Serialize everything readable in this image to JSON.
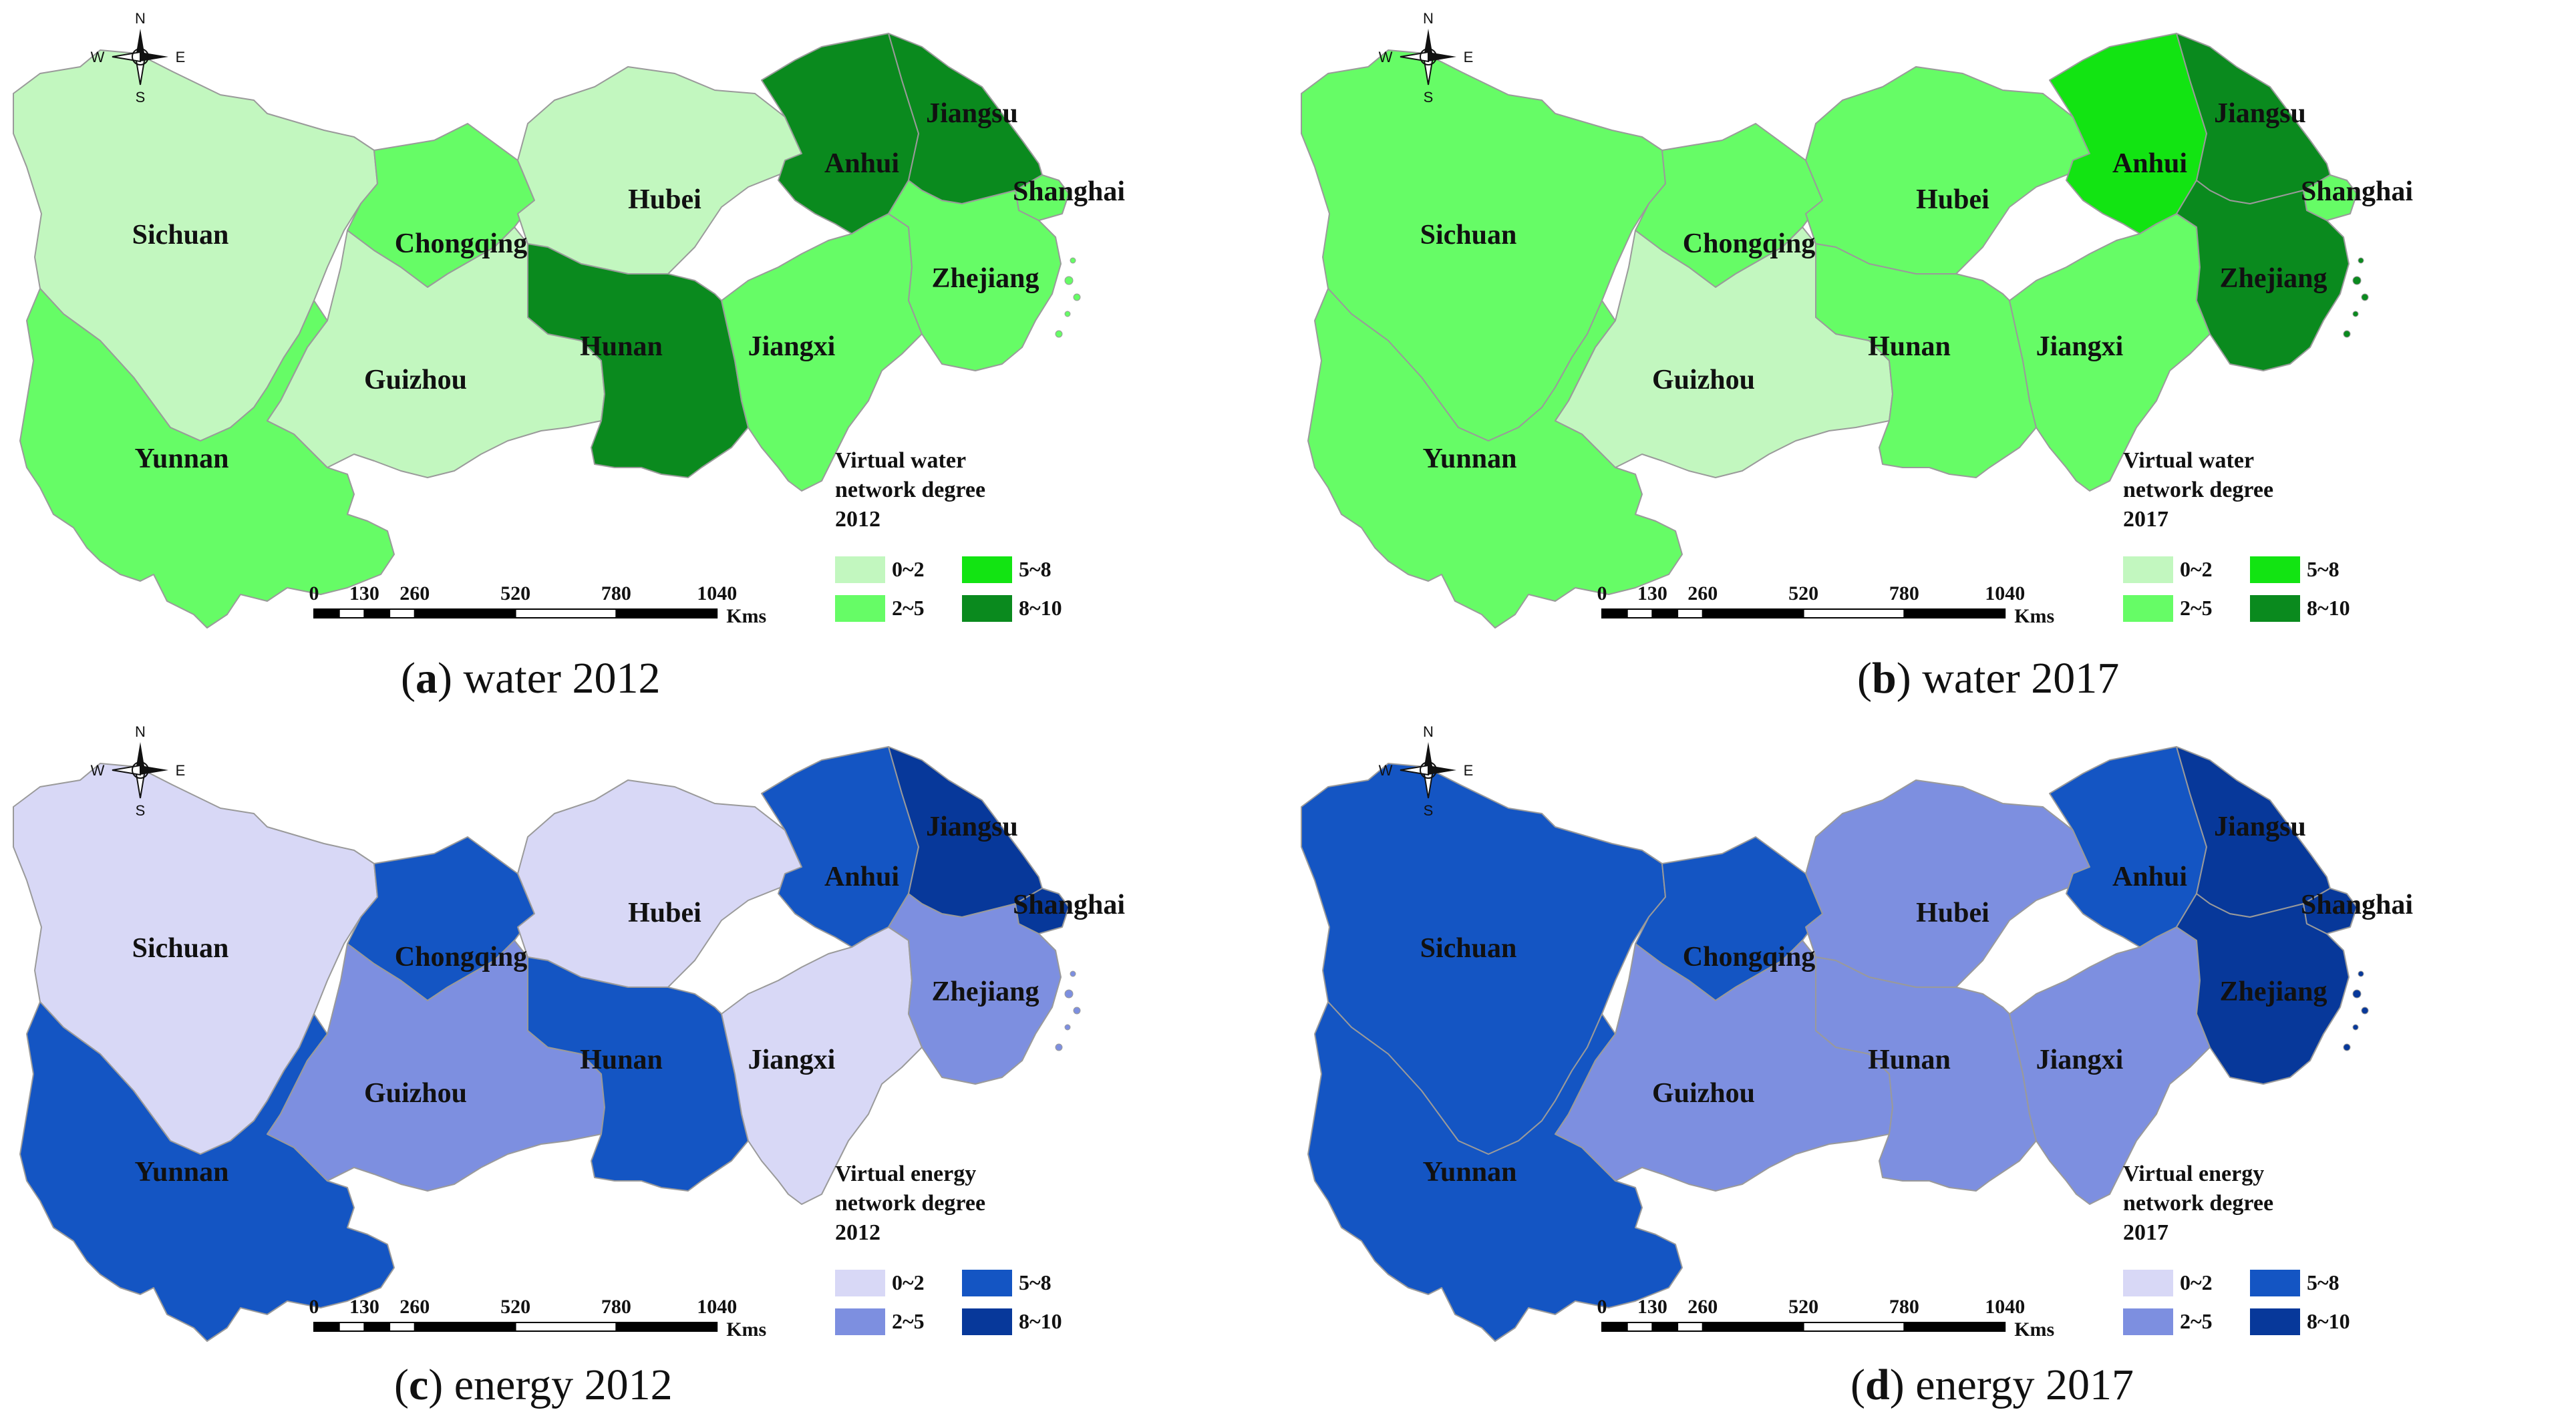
{
  "compass": {
    "n": "N",
    "s": "S",
    "w": "W",
    "e": "E"
  },
  "scale": {
    "ticks": [
      "0",
      "130",
      "260",
      "520",
      "780",
      "1040"
    ],
    "unit": "Kms"
  },
  "legend_classes": [
    "0~2",
    "5~8",
    "2~5",
    "8~10"
  ],
  "palettes": {
    "water": {
      "0~2": "#c2f7bf",
      "2~5": "#66fc66",
      "5~8": "#12e412",
      "8~10": "#0a8a1e"
    },
    "energy": {
      "0~2": "#d8d8f6",
      "2~5": "#7d8fe0",
      "5~8": "#1455c3",
      "8~10": "#07389a"
    }
  },
  "panels": [
    {
      "id": "a",
      "letter": "a",
      "caption_text": "water 2012",
      "kind": "water",
      "legend_title": [
        "Virtual water",
        "network degree",
        "2012"
      ],
      "classes": {
        "Sichuan": "0~2",
        "Chongqing": "2~5",
        "Hubei": "0~2",
        "Anhui": "8~10",
        "Jiangsu": "8~10",
        "Shanghai": "2~5",
        "Zhejiang": "2~5",
        "Jiangxi": "2~5",
        "Hunan": "8~10",
        "Guizhou": "0~2",
        "Yunnan": "2~5"
      }
    },
    {
      "id": "b",
      "letter": "b",
      "caption_text": "water 2017",
      "kind": "water",
      "legend_title": [
        "Virtual water",
        "network degree",
        "2017"
      ],
      "classes": {
        "Sichuan": "2~5",
        "Chongqing": "2~5",
        "Hubei": "2~5",
        "Anhui": "5~8",
        "Jiangsu": "8~10",
        "Shanghai": "2~5",
        "Zhejiang": "8~10",
        "Jiangxi": "2~5",
        "Hunan": "2~5",
        "Guizhou": "0~2",
        "Yunnan": "2~5"
      }
    },
    {
      "id": "c",
      "letter": "c",
      "caption_text": "energy 2012",
      "kind": "energy",
      "legend_title": [
        "Virtual energy",
        "network degree",
        "2012"
      ],
      "classes": {
        "Sichuan": "0~2",
        "Chongqing": "5~8",
        "Hubei": "0~2",
        "Anhui": "5~8",
        "Jiangsu": "8~10",
        "Shanghai": "8~10",
        "Zhejiang": "2~5",
        "Jiangxi": "0~2",
        "Hunan": "5~8",
        "Guizhou": "2~5",
        "Yunnan": "5~8"
      }
    },
    {
      "id": "d",
      "letter": "d",
      "caption_text": "energy 2017",
      "kind": "energy",
      "legend_title": [
        "Virtual energy",
        "network degree",
        "2017"
      ],
      "classes": {
        "Sichuan": "5~8",
        "Chongqing": "5~8",
        "Hubei": "2~5",
        "Anhui": "5~8",
        "Jiangsu": "8~10",
        "Shanghai": "8~10",
        "Zhejiang": "8~10",
        "Jiangxi": "2~5",
        "Hunan": "2~5",
        "Guizhou": "2~5",
        "Yunnan": "5~8"
      }
    }
  ]
}
